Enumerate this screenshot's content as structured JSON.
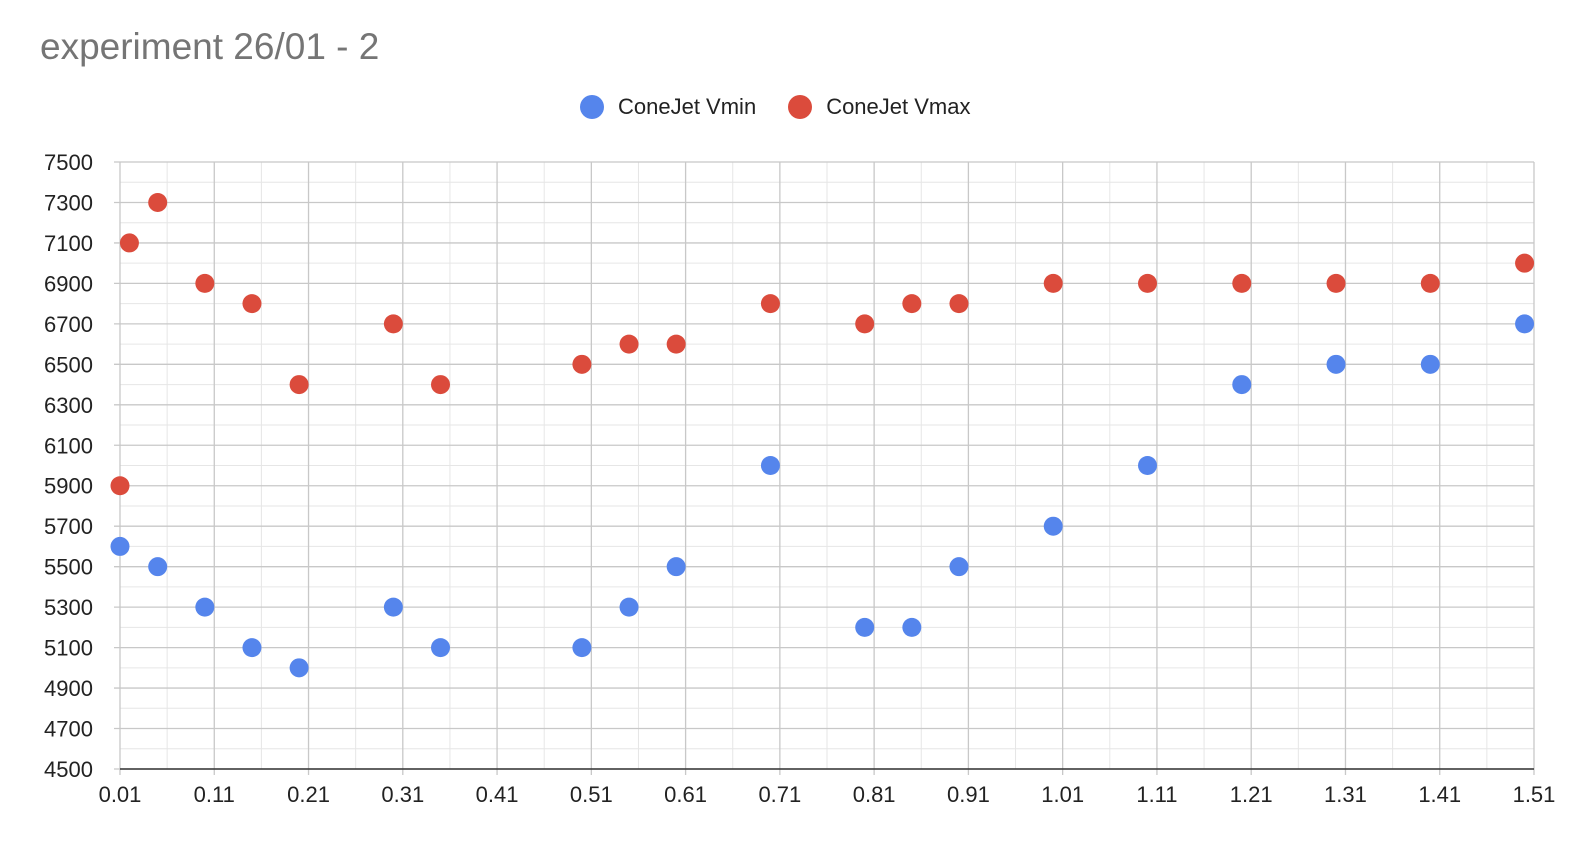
{
  "chart_data": {
    "type": "scatter",
    "title": "experiment 26/01 - 2",
    "xlabel": "",
    "ylabel": "",
    "xlim": [
      0.01,
      1.51
    ],
    "ylim": [
      4500,
      7500
    ],
    "grid": true,
    "legend_position": "top",
    "x_ticks": [
      "0.01",
      "0.11",
      "0.21",
      "0.31",
      "0.41",
      "0.51",
      "0.61",
      "0.71",
      "0.81",
      "0.91",
      "1.01",
      "1.11",
      "1.21",
      "1.31",
      "1.41",
      "1.51"
    ],
    "y_ticks": [
      "4500",
      "4700",
      "4900",
      "5100",
      "5300",
      "5500",
      "5700",
      "5900",
      "6100",
      "6300",
      "6500",
      "6700",
      "6900",
      "7100",
      "7300",
      "7500"
    ],
    "series": [
      {
        "name": "ConeJet Vmin",
        "color": "#5585EC",
        "points": [
          {
            "x": 0.01,
            "y": 5600
          },
          {
            "x": 0.05,
            "y": 5500
          },
          {
            "x": 0.1,
            "y": 5300
          },
          {
            "x": 0.15,
            "y": 5100
          },
          {
            "x": 0.2,
            "y": 5000
          },
          {
            "x": 0.3,
            "y": 5300
          },
          {
            "x": 0.35,
            "y": 5100
          },
          {
            "x": 0.5,
            "y": 5100
          },
          {
            "x": 0.55,
            "y": 5300
          },
          {
            "x": 0.6,
            "y": 5500
          },
          {
            "x": 0.7,
            "y": 6000
          },
          {
            "x": 0.8,
            "y": 5200
          },
          {
            "x": 0.85,
            "y": 5200
          },
          {
            "x": 0.9,
            "y": 5500
          },
          {
            "x": 1.0,
            "y": 5700
          },
          {
            "x": 1.1,
            "y": 6000
          },
          {
            "x": 1.2,
            "y": 6400
          },
          {
            "x": 1.3,
            "y": 6500
          },
          {
            "x": 1.4,
            "y": 6500
          },
          {
            "x": 1.5,
            "y": 6700
          }
        ]
      },
      {
        "name": "ConeJet Vmax",
        "color": "#DB4B3C",
        "points": [
          {
            "x": 0.01,
            "y": 5900
          },
          {
            "x": 0.02,
            "y": 7100
          },
          {
            "x": 0.05,
            "y": 7300
          },
          {
            "x": 0.1,
            "y": 6900
          },
          {
            "x": 0.15,
            "y": 6800
          },
          {
            "x": 0.2,
            "y": 6400
          },
          {
            "x": 0.3,
            "y": 6700
          },
          {
            "x": 0.35,
            "y": 6400
          },
          {
            "x": 0.5,
            "y": 6500
          },
          {
            "x": 0.55,
            "y": 6600
          },
          {
            "x": 0.6,
            "y": 6600
          },
          {
            "x": 0.7,
            "y": 6800
          },
          {
            "x": 0.8,
            "y": 6700
          },
          {
            "x": 0.85,
            "y": 6800
          },
          {
            "x": 0.9,
            "y": 6800
          },
          {
            "x": 1.0,
            "y": 6900
          },
          {
            "x": 1.1,
            "y": 6900
          },
          {
            "x": 1.2,
            "y": 6900
          },
          {
            "x": 1.3,
            "y": 6900
          },
          {
            "x": 1.4,
            "y": 6900
          },
          {
            "x": 1.5,
            "y": 7000
          }
        ]
      }
    ]
  }
}
